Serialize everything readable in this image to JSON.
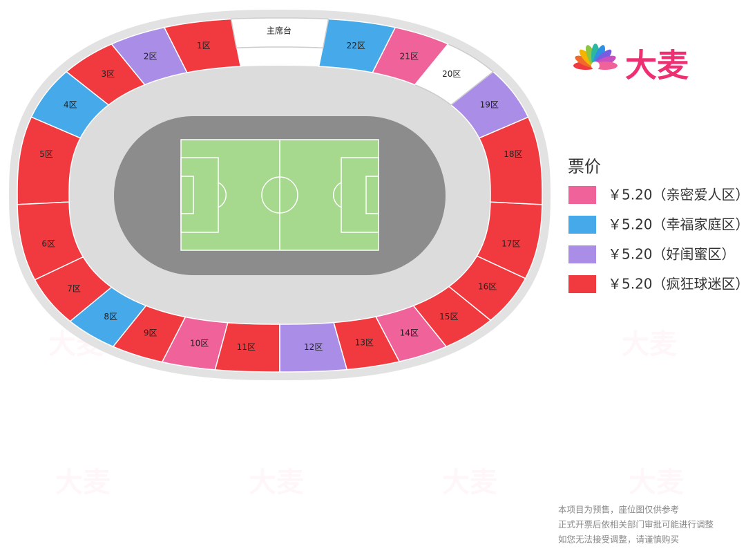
{
  "logo": "大麦",
  "watermark": "大麦",
  "stage": "主席台",
  "sections": [
    {
      "label": "1区",
      "tier": 3
    },
    {
      "label": "2区",
      "tier": 2
    },
    {
      "label": "3区",
      "tier": 3
    },
    {
      "label": "4区",
      "tier": 1
    },
    {
      "label": "5区",
      "tier": 3
    },
    {
      "label": "6区",
      "tier": 3
    },
    {
      "label": "7区",
      "tier": 3
    },
    {
      "label": "8区",
      "tier": 1
    },
    {
      "label": "9区",
      "tier": 3
    },
    {
      "label": "10区",
      "tier": 0
    },
    {
      "label": "11区",
      "tier": 3
    },
    {
      "label": "12区",
      "tier": 2
    },
    {
      "label": "13区",
      "tier": 3
    },
    {
      "label": "14区",
      "tier": 0
    },
    {
      "label": "15区",
      "tier": 3
    },
    {
      "label": "16区",
      "tier": 3
    },
    {
      "label": "17区",
      "tier": 3
    },
    {
      "label": "18区",
      "tier": 3
    },
    {
      "label": "19区",
      "tier": 2
    },
    {
      "label": "20区"
    },
    {
      "label": "21区",
      "tier": 0
    },
    {
      "label": "22区",
      "tier": 1
    }
  ],
  "legend": {
    "title": "票价",
    "items": [
      {
        "label": "￥5.20（亲密爱人区）",
        "color": "#f0629a"
      },
      {
        "label": "￥5.20（幸福家庭区）",
        "color": "#45a9ea"
      },
      {
        "label": "￥5.20（好闺蜜区）",
        "color": "#a98de6"
      },
      {
        "label": "￥5.20（疯狂球迷区）",
        "color": "#f03a3f"
      }
    ]
  },
  "notes": [
    "本项目为预售，座位图仅供参考",
    "正式开票后依相关部门审批可能进行调整",
    "如您无法接受调整，请谨慎购买"
  ]
}
